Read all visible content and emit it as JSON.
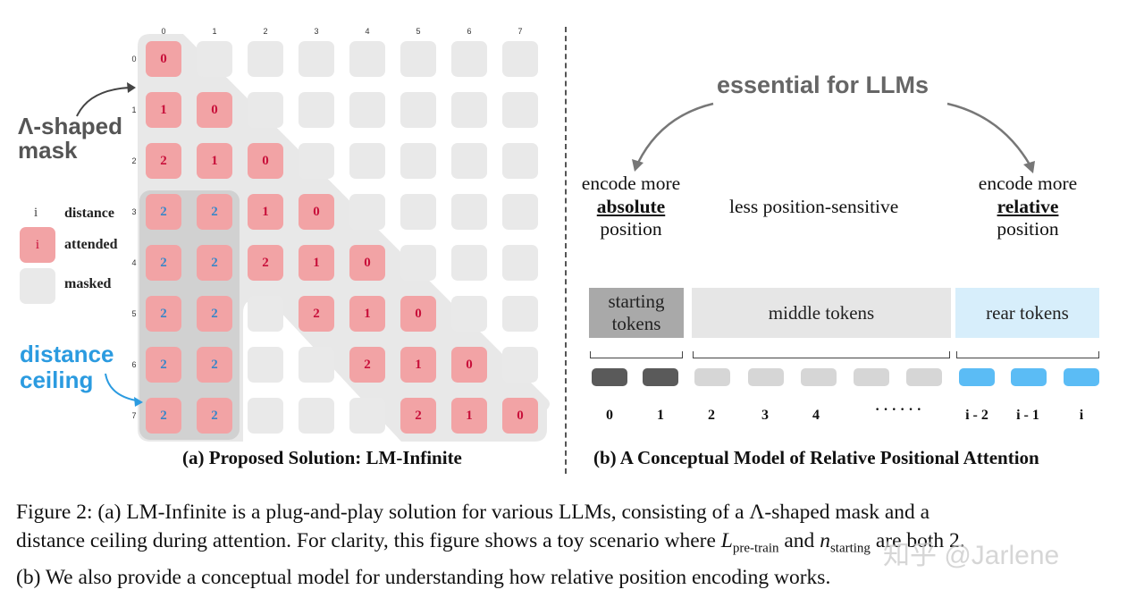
{
  "left_panel": {
    "col_indices": [
      "0",
      "1",
      "2",
      "3",
      "4",
      "5",
      "6",
      "7"
    ],
    "row_indices": [
      "0",
      "1",
      "2",
      "3",
      "4",
      "5",
      "6",
      "7"
    ],
    "cells": [
      [
        "0",
        null,
        null,
        null,
        null,
        null,
        null,
        null
      ],
      [
        "1",
        "0",
        null,
        null,
        null,
        null,
        null,
        null
      ],
      [
        "2",
        "1",
        "0",
        null,
        null,
        null,
        null,
        null
      ],
      [
        "2",
        "2",
        "1",
        "0",
        null,
        null,
        null,
        null
      ],
      [
        "2",
        "2",
        "2",
        "1",
        "0",
        null,
        null,
        null
      ],
      [
        "2",
        "2",
        null,
        "2",
        "1",
        "0",
        null,
        null
      ],
      [
        "2",
        "2",
        null,
        null,
        "2",
        "1",
        "0",
        null
      ],
      [
        "2",
        "2",
        null,
        null,
        null,
        "2",
        "1",
        "0"
      ]
    ],
    "lambda_label": [
      "Λ-shaped",
      "mask"
    ],
    "ceiling_label": [
      "distance",
      "ceiling"
    ],
    "legend": {
      "distance_symbol": "i",
      "distance_label": "distance",
      "attended_symbol": "i",
      "attended_label": "attended",
      "masked_label": "masked"
    },
    "caption": "(a) Proposed Solution: LM-Infinite"
  },
  "right_panel": {
    "essential": "essential for LLMs",
    "abs_lines": [
      "encode more",
      "absolute",
      "position"
    ],
    "mid_text": "less position-sensitive",
    "rel_lines": [
      "encode more",
      "relative",
      "position"
    ],
    "segments": {
      "starting": [
        "starting",
        "tokens"
      ],
      "middle": "middle tokens",
      "rear": "rear tokens"
    },
    "token_labels": [
      "0",
      "1",
      "2",
      "3",
      "4",
      "· · ·  · · ·",
      "i - 2",
      "i - 1",
      "i"
    ],
    "caption": "(b) A Conceptual Model of Relative Positional Attention"
  },
  "figure_caption": {
    "line1": "Figure 2: (a) LM-Infinite is a plug-and-play solution for various LLMs, consisting of a Λ-shaped mask and a",
    "line2_a": "distance ceiling during attention. For clarity, this figure shows a toy scenario where ",
    "line2_L": "L",
    "line2_Lsub": "pre-train",
    "line2_and": " and ",
    "line2_n": "n",
    "line2_nsub": "starting",
    "line2_b": " are both 2.",
    "line3": "(b) We also provide a conceptual model for understanding how relative position encoding works."
  },
  "watermark": "知乎 @Jarlene",
  "colors": {
    "attended": "#f2a3a5",
    "masked": "#e9e9e9",
    "attended_text": "#c8103a",
    "ceiling_text": "#3a86c8",
    "starting_seg": "#a9a9a9",
    "middle_seg": "#e6e6e6",
    "rear_seg": "#d7eefb"
  }
}
